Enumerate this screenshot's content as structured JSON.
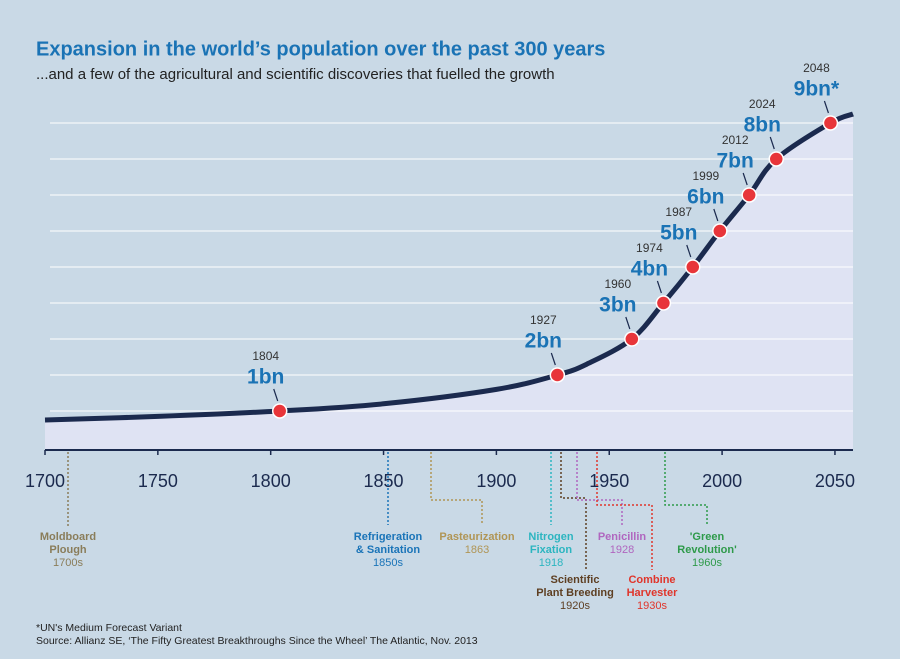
{
  "chart_data": {
    "type": "line",
    "title": "Expansion in the world’s population over the past 300 years",
    "subtitle": "...and a few of the agricultural and scientific discoveries that fuelled the growth",
    "xlim": [
      1700,
      2058
    ],
    "xticks": [
      1700,
      1750,
      1800,
      1850,
      1900,
      1950,
      2000,
      2050
    ],
    "ylim": [
      0,
      9.5
    ],
    "line_color": "#1b2a4e",
    "marker_color": "#e8353a",
    "series": [
      {
        "x": [
          1700,
          1750,
          1804,
          1850,
          1900,
          1927,
          1940,
          1960,
          1974,
          1987,
          1999,
          2012,
          2024,
          2048,
          2058
        ],
        "values": [
          0.75,
          0.85,
          1,
          1.2,
          1.6,
          2,
          2.3,
          3,
          4,
          5,
          6,
          7,
          8,
          9,
          9.25
        ]
      }
    ],
    "milestones": [
      {
        "year": 1804,
        "value": 1,
        "label": "1bn"
      },
      {
        "year": 1927,
        "value": 2,
        "label": "2bn"
      },
      {
        "year": 1960,
        "value": 3,
        "label": "3bn"
      },
      {
        "year": 1974,
        "value": 4,
        "label": "4bn"
      },
      {
        "year": 1987,
        "value": 5,
        "label": "5bn"
      },
      {
        "year": 1999,
        "value": 6,
        "label": "6bn"
      },
      {
        "year": 2012,
        "value": 7,
        "label": "7bn"
      },
      {
        "year": 2024,
        "value": 8,
        "label": "8bn"
      },
      {
        "year": 2048,
        "value": 9,
        "label": "9bn*"
      }
    ],
    "discoveries": [
      {
        "name": [
          "Moldboard",
          "Plough"
        ],
        "date": "1700s",
        "color": "#8a7d5a"
      },
      {
        "name": [
          "Refrigeration",
          "& Sanitation"
        ],
        "date": "1850s",
        "color": "#1a74b8"
      },
      {
        "name": [
          "Pasteurization"
        ],
        "date": "1863",
        "color": "#b09555"
      },
      {
        "name": [
          "Nitrogen",
          "Fixation"
        ],
        "date": "1918",
        "color": "#2cb5c0"
      },
      {
        "name": [
          "Scientific",
          "Plant Breeding"
        ],
        "date": "1920s",
        "color": "#5e3f22"
      },
      {
        "name": [
          "Penicillin"
        ],
        "date": "1928",
        "color": "#b066bf"
      },
      {
        "name": [
          "Combine",
          "Harvester"
        ],
        "date": "1930s",
        "color": "#e0352b"
      },
      {
        "name": [
          "'Green",
          "Revolution'"
        ],
        "date": "1960s",
        "color": "#2e9a4a"
      }
    ],
    "footnotes": [
      "*UN's Medium Forecast Variant",
      "Source: Allianz SE, ‘The Fifty Greatest Breakthroughs Since the Wheel’ The Atlantic, Nov. 2013"
    ]
  }
}
